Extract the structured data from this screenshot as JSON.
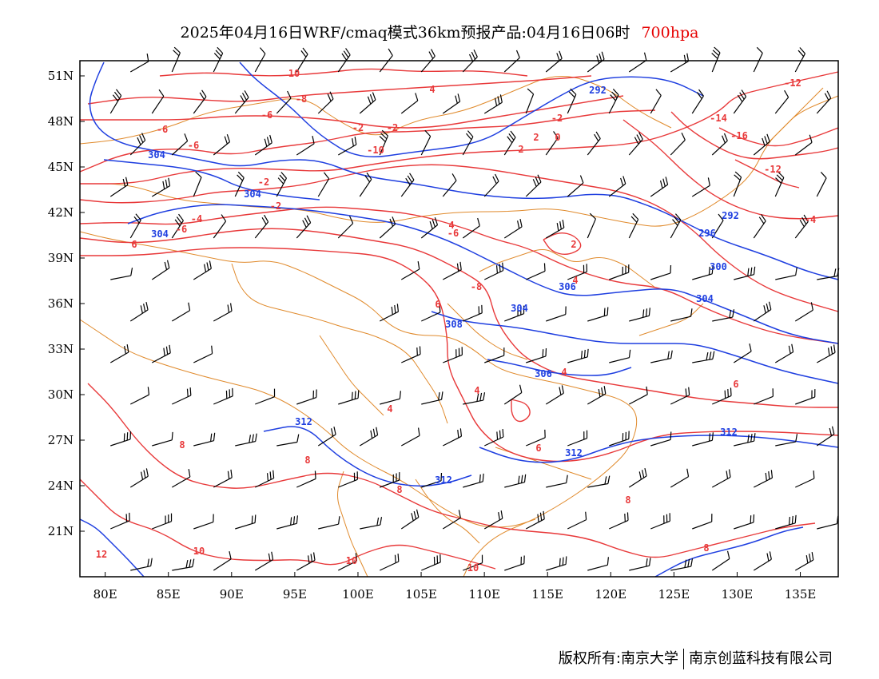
{
  "title": {
    "main": "2025年04月16日WRF/cmaq模式36km预报产品:04月16日06时",
    "level": "700hpa",
    "level_color": "#e60000"
  },
  "footer": {
    "copyright": "版权所有:南京大学",
    "company": "南京创蓝科技有限公司"
  },
  "axes": {
    "lon_labels": [
      "80E",
      "85E",
      "90E",
      "95E",
      "100E",
      "105E",
      "110E",
      "115E",
      "120E",
      "125E",
      "130E",
      "135E"
    ],
    "lat_labels": [
      "51N",
      "48N",
      "45N",
      "42N",
      "39N",
      "36N",
      "33N",
      "30N",
      "27N",
      "24N",
      "21N"
    ],
    "lon_range": [
      78,
      138
    ],
    "lat_range": [
      18,
      52
    ]
  },
  "colors": {
    "temperature": "#e8393a",
    "geopotential": "#1f3fe0",
    "border": "#e08a2c",
    "barb": "#000000"
  },
  "map_data": {
    "temp_labels": [
      "10",
      "-8",
      "-6",
      "-6",
      "-6",
      "-2",
      "-2",
      "-6",
      "-4",
      "-2",
      "-2",
      "-2",
      "0",
      "2",
      "2",
      "-10",
      "-12",
      "-14",
      "-16",
      "-12",
      "-4",
      "-6",
      "-8",
      "4",
      "4",
      "4",
      "4",
      "6",
      "6",
      "6",
      "8",
      "8",
      "8",
      "10",
      "10",
      "10",
      "12",
      "8",
      "8",
      "2",
      "4",
      "6",
      "4"
    ],
    "height_labels": [
      "292",
      "304",
      "304",
      "304",
      "292",
      "296",
      "300",
      "304",
      "304",
      "306",
      "308",
      "306",
      "312",
      "312",
      "312",
      "312"
    ]
  }
}
